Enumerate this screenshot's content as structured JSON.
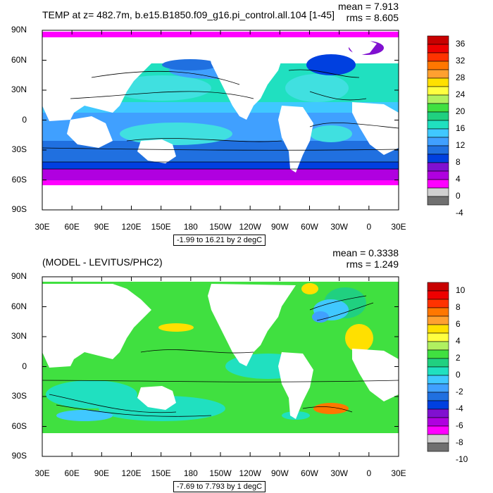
{
  "panels": [
    {
      "id": "top",
      "title": "TEMP at z= 482.7m, b.e15.B1850.f09_g16.pi_control.all.104 [1-45]",
      "mean": "mean = 7.913",
      "rms": "rms = 8.605",
      "y_ticks": [
        "90N",
        "60N",
        "30N",
        "0",
        "30S",
        "60S",
        "90S"
      ],
      "x_ticks": [
        "30E",
        "60E",
        "90E",
        "120E",
        "150E",
        "180",
        "150W",
        "120W",
        "90W",
        "60W",
        "30W",
        "0",
        "30E"
      ],
      "range_label": "-1.99 to 16.21 by 2 degC",
      "colorbar": {
        "labels": [
          "36",
          "32",
          "28",
          "24",
          "20",
          "16",
          "12",
          "8",
          "4",
          "0",
          "-4"
        ],
        "colors": [
          "#c80000",
          "#ee0000",
          "#ff3300",
          "#ff7700",
          "#ffa030",
          "#ffe000",
          "#ffff40",
          "#b0f060",
          "#40e040",
          "#20d080",
          "#20e0c0",
          "#40c8ff",
          "#40a0ff",
          "#2070e0",
          "#0040e0",
          "#8010d0",
          "#b000e0",
          "#ff00ff",
          "#d0d0d0",
          "#707070"
        ]
      },
      "chart_data": {
        "type": "heatmap",
        "title": "TEMP at z= 482.7m, b.e15.B1850.f09_g16.pi_control.all.104 [1-45]",
        "xlabel": "",
        "ylabel": "",
        "xlim": [
          "30E",
          "30E"
        ],
        "ylim": [
          "90S",
          "90N"
        ],
        "contour_min": -1.99,
        "contour_max": 16.21,
        "contour_interval": 2,
        "units": "degC",
        "mean": 7.913,
        "rms": 8.605
      }
    },
    {
      "id": "bottom",
      "title": "(MODEL - LEVITUS/PHC2)",
      "mean": "mean = 0.3338",
      "rms": "rms = 1.249",
      "y_ticks": [
        "90N",
        "60N",
        "30N",
        "0",
        "30S",
        "60S",
        "90S"
      ],
      "x_ticks": [
        "30E",
        "60E",
        "90E",
        "120E",
        "150E",
        "180",
        "150W",
        "120W",
        "90W",
        "60W",
        "30W",
        "0",
        "30E"
      ],
      "range_label": "-7.69 to 7.793 by 1 degC",
      "colorbar": {
        "labels": [
          "10",
          "8",
          "6",
          "4",
          "2",
          "0",
          "-2",
          "-4",
          "-6",
          "-8",
          "-10"
        ],
        "colors": [
          "#c80000",
          "#ee0000",
          "#ff3300",
          "#ff7700",
          "#ffa030",
          "#ffe000",
          "#ffff40",
          "#b0f060",
          "#40e040",
          "#20d080",
          "#20e0c0",
          "#40c8ff",
          "#40a0ff",
          "#2070e0",
          "#0040e0",
          "#8010d0",
          "#b000e0",
          "#ff00ff",
          "#d0d0d0",
          "#707070"
        ]
      },
      "chart_data": {
        "type": "heatmap",
        "title": "(MODEL - LEVITUS/PHC2)",
        "xlabel": "",
        "ylabel": "",
        "xlim": [
          "30E",
          "30E"
        ],
        "ylim": [
          "90S",
          "90N"
        ],
        "contour_min": -7.69,
        "contour_max": 7.793,
        "contour_interval": 1,
        "units": "degC",
        "mean": 0.3338,
        "rms": 1.249
      }
    }
  ]
}
